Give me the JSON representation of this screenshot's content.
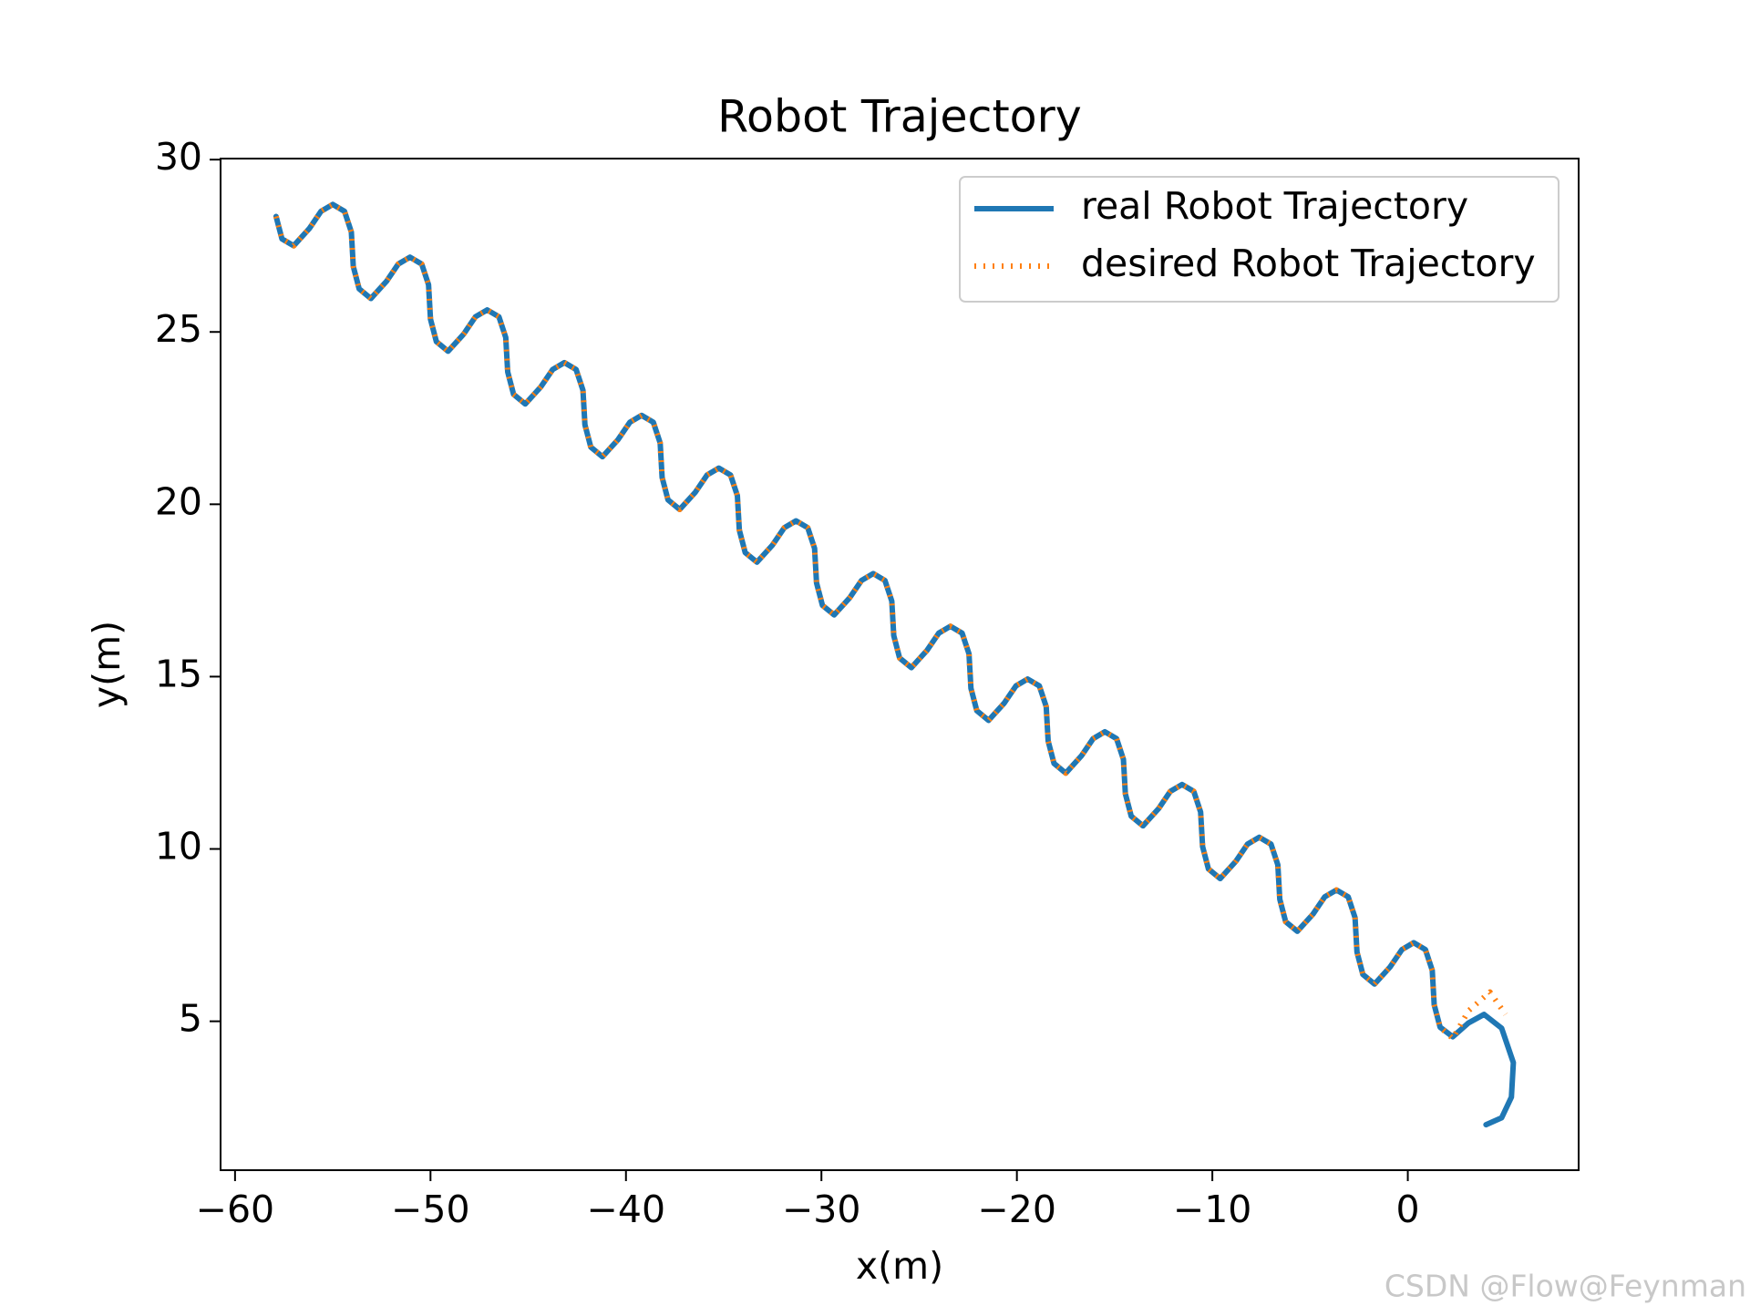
{
  "chart_data": {
    "type": "line",
    "title": "Robot Trajectory",
    "xlabel": "x(m)",
    "ylabel": "y(m)",
    "watermark": "CSDN @Flow@Feynman",
    "xlim": [
      -60.74,
      8.74
    ],
    "ylim": [
      0.68,
      30.03
    ],
    "xticks": [
      {
        "value": -60,
        "label": "−60"
      },
      {
        "value": -50,
        "label": "−50"
      },
      {
        "value": -40,
        "label": "−40"
      },
      {
        "value": -30,
        "label": "−30"
      },
      {
        "value": -20,
        "label": "−20"
      },
      {
        "value": -10,
        "label": "−10"
      },
      0
    ],
    "yticks": [
      5,
      10,
      15,
      20,
      25,
      30
    ],
    "grid": false,
    "legend": "upper right",
    "series": [
      {
        "name": "real Robot Trajectory",
        "color": "#1f77b4",
        "style": "solid",
        "x": [
          -57.9,
          -57.6,
          -57,
          -56.2,
          -55.6,
          -55,
          -54.4,
          -54.05,
          -53.95,
          -53.65,
          -53.05,
          -52.25,
          -51.65,
          -51.05,
          -50.45,
          -50.1,
          -50,
          -49.7,
          -49.1,
          -48.3,
          -47.7,
          -47.1,
          -46.5,
          -46.15,
          -46.05,
          -45.75,
          -45.15,
          -44.35,
          -43.75,
          -43.15,
          -42.55,
          -42.2,
          -42.1,
          -41.8,
          -41.2,
          -40.4,
          -39.8,
          -39.2,
          -38.6,
          -38.25,
          -38.15,
          -37.85,
          -37.25,
          -36.45,
          -35.85,
          -35.25,
          -34.65,
          -34.3,
          -34.2,
          -33.9,
          -33.3,
          -32.5,
          -31.9,
          -31.3,
          -30.7,
          -30.35,
          -30.25,
          -29.95,
          -29.35,
          -28.55,
          -27.95,
          -27.35,
          -26.75,
          -26.4,
          -26.3,
          -26,
          -25.4,
          -24.6,
          -24,
          -23.4,
          -22.8,
          -22.45,
          -22.35,
          -22.05,
          -21.45,
          -20.65,
          -20.05,
          -19.45,
          -18.85,
          -18.5,
          -18.4,
          -18.1,
          -17.5,
          -16.7,
          -16.1,
          -15.5,
          -14.9,
          -14.55,
          -14.45,
          -14.15,
          -13.55,
          -12.75,
          -12.15,
          -11.55,
          -10.95,
          -10.6,
          -10.5,
          -10.2,
          -9.6,
          -8.8,
          -8.2,
          -7.6,
          -7,
          -6.65,
          -6.55,
          -6.25,
          -5.65,
          -4.85,
          -4.25,
          -3.65,
          -3.05,
          -2.7,
          -2.6,
          -2.3,
          -1.7,
          -0.9,
          -0.3,
          0.3,
          0.9,
          1.25,
          1.35,
          1.65,
          2.3,
          3.1,
          3.9,
          4.8,
          5.4,
          5.3,
          4.8,
          4.0
        ],
        "values": [
          28.35,
          27.7,
          27.5,
          28,
          28.5,
          28.7,
          28.5,
          27.9,
          26.9,
          26.25,
          25.97,
          26.47,
          26.97,
          27.17,
          26.97,
          26.37,
          25.37,
          24.72,
          24.44,
          24.94,
          25.44,
          25.64,
          25.44,
          24.84,
          23.84,
          23.19,
          22.91,
          23.41,
          23.91,
          24.11,
          23.91,
          23.31,
          22.31,
          21.66,
          21.38,
          21.88,
          22.38,
          22.58,
          22.38,
          21.78,
          20.78,
          20.13,
          19.85,
          20.35,
          20.85,
          21.05,
          20.85,
          20.25,
          19.25,
          18.6,
          18.32,
          18.82,
          19.32,
          19.52,
          19.32,
          18.72,
          17.72,
          17.07,
          16.79,
          17.29,
          17.79,
          17.99,
          17.79,
          17.19,
          16.19,
          15.54,
          15.26,
          15.76,
          16.26,
          16.46,
          16.26,
          15.66,
          14.66,
          14.01,
          13.73,
          14.23,
          14.73,
          14.93,
          14.73,
          14.13,
          13.13,
          12.48,
          12.2,
          12.7,
          13.2,
          13.4,
          13.2,
          12.6,
          11.6,
          10.95,
          10.67,
          11.17,
          11.67,
          11.87,
          11.67,
          11.07,
          10.07,
          9.42,
          9.14,
          9.64,
          10.14,
          10.34,
          10.14,
          9.54,
          8.54,
          7.89,
          7.61,
          8.11,
          8.61,
          8.81,
          8.61,
          8.01,
          7.01,
          6.36,
          6.08,
          6.58,
          7.08,
          7.28,
          7.08,
          6.48,
          5.48,
          4.83,
          4.55,
          4.95,
          5.2,
          4.8,
          3.8,
          2.8,
          2.2,
          2.0
        ]
      },
      {
        "name": "desired Robot Trajectory",
        "color": "#ff7f0e",
        "style": "dotted",
        "x": [
          -57.9,
          -57.6,
          -57,
          -56.2,
          -55.6,
          -55,
          -54.4,
          -54.05,
          -53.95,
          -53.65,
          -53.05,
          -52.25,
          -51.65,
          -51.05,
          -50.45,
          -50.1,
          -50,
          -49.7,
          -49.1,
          -48.3,
          -47.7,
          -47.1,
          -46.5,
          -46.15,
          -46.05,
          -45.75,
          -45.15,
          -44.35,
          -43.75,
          -43.15,
          -42.55,
          -42.2,
          -42.1,
          -41.8,
          -41.2,
          -40.4,
          -39.8,
          -39.2,
          -38.6,
          -38.25,
          -38.15,
          -37.85,
          -37.25,
          -36.45,
          -35.85,
          -35.25,
          -34.65,
          -34.3,
          -34.2,
          -33.9,
          -33.3,
          -32.5,
          -31.9,
          -31.3,
          -30.7,
          -30.35,
          -30.25,
          -29.95,
          -29.35,
          -28.55,
          -27.95,
          -27.35,
          -26.75,
          -26.4,
          -26.3,
          -26,
          -25.4,
          -24.6,
          -24,
          -23.4,
          -22.8,
          -22.45,
          -22.35,
          -22.05,
          -21.45,
          -20.65,
          -20.05,
          -19.45,
          -18.85,
          -18.5,
          -18.4,
          -18.1,
          -17.5,
          -16.7,
          -16.1,
          -15.5,
          -14.9,
          -14.55,
          -14.45,
          -14.15,
          -13.55,
          -12.75,
          -12.15,
          -11.55,
          -10.95,
          -10.6,
          -10.5,
          -10.2,
          -9.6,
          -8.8,
          -8.2,
          -7.6,
          -7,
          -6.65,
          -6.55,
          -6.25,
          -5.65,
          -4.85,
          -4.25,
          -3.65,
          -3.05,
          -2.7,
          -2.6,
          -2.3,
          -1.7,
          -0.9,
          -0.3,
          0.3,
          0.9,
          1.25,
          1.35,
          1.65,
          2.3,
          3.1,
          4.2,
          5.0
        ],
        "values": [
          28.35,
          27.7,
          27.5,
          28,
          28.5,
          28.7,
          28.5,
          27.9,
          26.9,
          26.25,
          25.97,
          26.47,
          26.97,
          27.17,
          26.97,
          26.37,
          25.37,
          24.72,
          24.44,
          24.94,
          25.44,
          25.64,
          25.44,
          24.84,
          23.84,
          23.19,
          22.91,
          23.41,
          23.91,
          24.11,
          23.91,
          23.31,
          22.31,
          21.66,
          21.38,
          21.88,
          22.38,
          22.58,
          22.38,
          21.78,
          20.78,
          20.13,
          19.85,
          20.35,
          20.85,
          21.05,
          20.85,
          20.25,
          19.25,
          18.6,
          18.32,
          18.82,
          19.32,
          19.52,
          19.32,
          18.72,
          17.72,
          17.07,
          16.79,
          17.29,
          17.79,
          17.99,
          17.79,
          17.19,
          16.19,
          15.54,
          15.26,
          15.76,
          16.26,
          16.46,
          16.26,
          15.66,
          14.66,
          14.01,
          13.73,
          14.23,
          14.73,
          14.93,
          14.73,
          14.13,
          13.13,
          12.48,
          12.2,
          12.7,
          13.2,
          13.4,
          13.2,
          12.6,
          11.6,
          10.95,
          10.67,
          11.17,
          11.67,
          11.87,
          11.67,
          11.07,
          10.07,
          9.42,
          9.14,
          9.64,
          10.14,
          10.34,
          10.14,
          9.54,
          8.54,
          7.89,
          7.61,
          8.11,
          8.61,
          8.81,
          8.61,
          8.01,
          7.01,
          6.36,
          6.08,
          6.58,
          7.08,
          7.28,
          7.08,
          6.48,
          5.48,
          4.83,
          4.5,
          5.3,
          5.85,
          5.2
        ]
      }
    ]
  }
}
